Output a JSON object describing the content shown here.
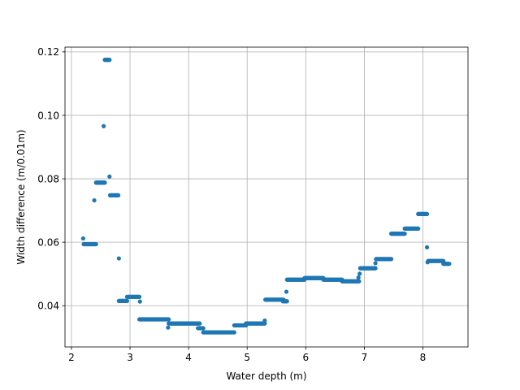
{
  "chart_data": {
    "type": "scatter",
    "title": "",
    "xlabel": "Water depth (m)",
    "ylabel": "Width difference (m/0.01m)",
    "xlim": [
      1.89,
      8.77
    ],
    "ylim": [
      0.027,
      0.1215
    ],
    "xticks": [
      2,
      3,
      4,
      5,
      6,
      7,
      8
    ],
    "xtick_labels": [
      "2",
      "3",
      "4",
      "5",
      "6",
      "7",
      "8"
    ],
    "yticks": [
      0.04,
      0.06,
      0.08,
      0.1,
      0.12
    ],
    "ytick_labels": [
      "0.04",
      "0.06",
      "0.08",
      "0.10",
      "0.12"
    ],
    "grid": true,
    "marker_color": "#1f77b4",
    "series": [
      {
        "segments": [
          {
            "x": [
              2.2,
              2.2
            ],
            "y": 0.0612
          },
          {
            "x": [
              2.21,
              2.42
            ],
            "y": 0.0594
          },
          {
            "x": [
              2.39,
              2.39
            ],
            "y": 0.0732
          },
          {
            "x": [
              2.42,
              2.57
            ],
            "y": 0.0788
          },
          {
            "x": [
              2.55,
              2.55
            ],
            "y": 0.0966
          },
          {
            "x": [
              2.57,
              2.65
            ],
            "y": 0.1175
          },
          {
            "x": [
              2.65,
              2.65
            ],
            "y": 0.0807
          },
          {
            "x": [
              2.66,
              2.8
            ],
            "y": 0.0748
          },
          {
            "x": [
              2.81,
              2.81
            ],
            "y": 0.0549
          },
          {
            "x": [
              2.81,
              2.95
            ],
            "y": 0.0415
          },
          {
            "x": [
              2.95,
              3.16
            ],
            "y": 0.0428
          },
          {
            "x": [
              3.17,
              3.17
            ],
            "y": 0.0413
          },
          {
            "x": [
              3.16,
              3.66
            ],
            "y": 0.0357
          },
          {
            "x": [
              3.65,
              3.65
            ],
            "y": 0.0331
          },
          {
            "x": [
              3.66,
              4.19
            ],
            "y": 0.0344
          },
          {
            "x": [
              4.16,
              4.25
            ],
            "y": 0.0329
          },
          {
            "x": [
              4.25,
              4.78
            ],
            "y": 0.0316
          },
          {
            "x": [
              4.78,
              4.98
            ],
            "y": 0.0338
          },
          {
            "x": [
              4.98,
              5.3
            ],
            "y": 0.0344
          },
          {
            "x": [
              5.3,
              5.3
            ],
            "y": 0.0353
          },
          {
            "x": [
              5.31,
              5.62
            ],
            "y": 0.0419
          },
          {
            "x": [
              5.61,
              5.68
            ],
            "y": 0.0414
          },
          {
            "x": [
              5.67,
              5.67
            ],
            "y": 0.0444
          },
          {
            "x": [
              5.68,
              5.98
            ],
            "y": 0.0482
          },
          {
            "x": [
              5.98,
              6.3
            ],
            "y": 0.0487
          },
          {
            "x": [
              6.3,
              6.62
            ],
            "y": 0.0482
          },
          {
            "x": [
              6.62,
              6.91
            ],
            "y": 0.0477
          },
          {
            "x": [
              6.9,
              6.9
            ],
            "y": 0.0489
          },
          {
            "x": [
              6.92,
              6.92
            ],
            "y": 0.0501
          },
          {
            "x": [
              6.93,
              7.19
            ],
            "y": 0.0518
          },
          {
            "x": [
              7.19,
              7.19
            ],
            "y": 0.0534
          },
          {
            "x": [
              7.2,
              7.46
            ],
            "y": 0.0547
          },
          {
            "x": [
              7.46,
              7.69
            ],
            "y": 0.0627
          },
          {
            "x": [
              7.69,
              7.92
            ],
            "y": 0.0643
          },
          {
            "x": [
              7.92,
              8.07
            ],
            "y": 0.0689
          },
          {
            "x": [
              8.07,
              8.07
            ],
            "y": 0.0584
          },
          {
            "x": [
              8.08,
              8.08
            ],
            "y": 0.0537
          },
          {
            "x": [
              8.09,
              8.35
            ],
            "y": 0.0541
          },
          {
            "x": [
              8.35,
              8.45
            ],
            "y": 0.0532
          }
        ]
      }
    ]
  }
}
